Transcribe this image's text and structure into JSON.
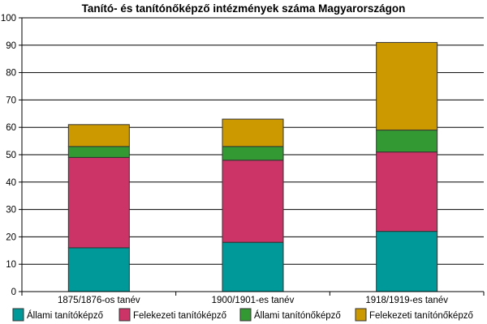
{
  "chart_data": {
    "type": "bar",
    "stacked": true,
    "title": "Tanító- és tanítónőképző intézmények száma Magyarországon",
    "xlabel": "",
    "ylabel": "",
    "ylim": [
      0,
      100
    ],
    "yticks": [
      0,
      10,
      20,
      30,
      40,
      50,
      60,
      70,
      80,
      90,
      100
    ],
    "grid": true,
    "legend": "bottom",
    "categories": [
      "1875/1876-os tanév",
      "1900/1901-es tanév",
      "1918/1919-es tanév"
    ],
    "series": [
      {
        "name": "Állami tanítóképző",
        "color": "#009999",
        "values": [
          16,
          18,
          22
        ]
      },
      {
        "name": "Felekezeti tanítóképző",
        "color": "#cc3366",
        "values": [
          33,
          30,
          29
        ]
      },
      {
        "name": "Állami tanítónőképző",
        "color": "#339933",
        "values": [
          4,
          5,
          8
        ]
      },
      {
        "name": "Felekezeti tanítónőképző",
        "color": "#cc9900",
        "values": [
          8,
          10,
          32
        ]
      }
    ]
  }
}
